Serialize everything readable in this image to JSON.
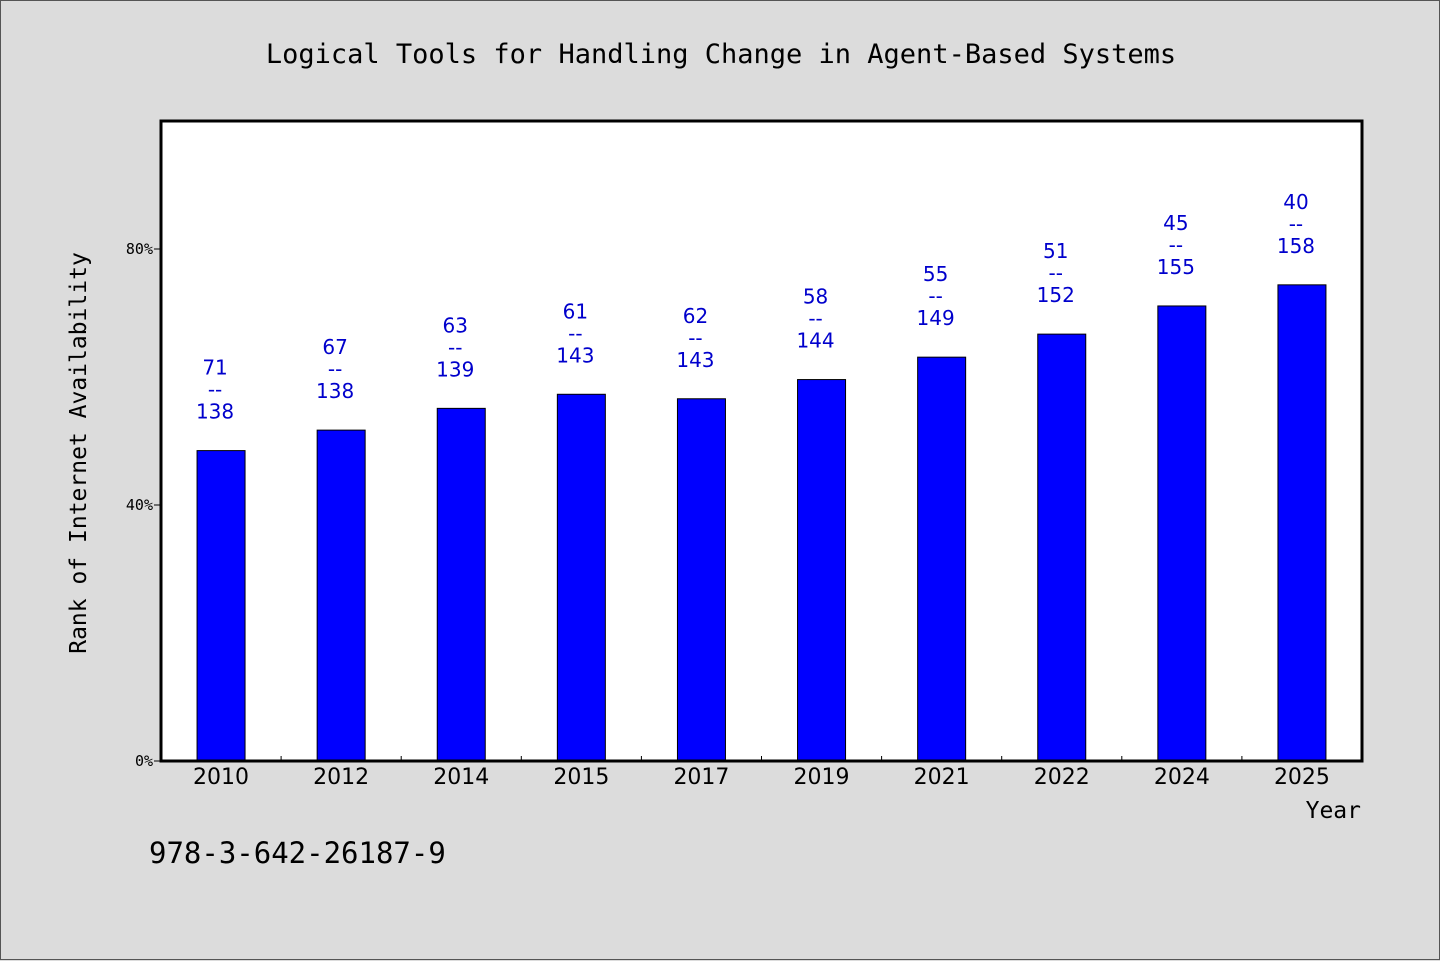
{
  "chart_data": {
    "type": "bar",
    "title": "Logical Tools for Handling Change in Agent-Based Systems",
    "xlabel": "Year",
    "ylabel": "Rank of Internet Availability",
    "categories": [
      "2010",
      "2012",
      "2014",
      "2015",
      "2017",
      "2019",
      "2021",
      "2022",
      "2024",
      "2025"
    ],
    "values": [
      48.5,
      51.7,
      55.1,
      57.3,
      56.6,
      59.6,
      63.1,
      66.7,
      71.1,
      74.4
    ],
    "data_labels": [
      [
        "71",
        "--",
        "138"
      ],
      [
        "67",
        "--",
        "138"
      ],
      [
        "63",
        "--",
        "139"
      ],
      [
        "61",
        "--",
        "143"
      ],
      [
        "62",
        "--",
        "143"
      ],
      [
        "58",
        "--",
        "144"
      ],
      [
        "55",
        "--",
        "149"
      ],
      [
        "51",
        "--",
        "152"
      ],
      [
        "45",
        "--",
        "155"
      ],
      [
        "40",
        "--",
        "158"
      ]
    ],
    "ylim": [
      0,
      100
    ],
    "yticks": [
      0,
      40,
      80
    ],
    "ytick_labels": [
      "0%",
      "40%",
      "80%"
    ],
    "bar_color": "#0000ff",
    "label_color": "#0000cc",
    "grid": false,
    "legend": "none"
  },
  "footer": {
    "isbn": "978-3-642-26187-9"
  },
  "colors": {
    "background": "#dcdcdc",
    "plot_background": "#ffffff",
    "axis": "#000000"
  }
}
